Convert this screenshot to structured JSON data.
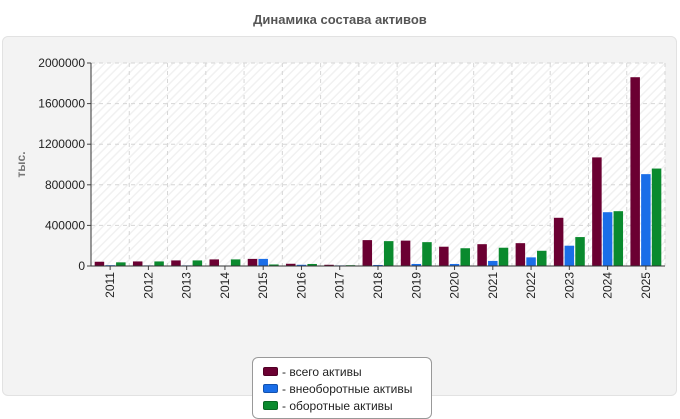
{
  "title": "Динамика состава активов",
  "chart_data": {
    "type": "bar",
    "title": "Динамика состава активов",
    "ylabel": "тыс.",
    "xlabel": "",
    "ylim": [
      0,
      2000000
    ],
    "yticks": [
      0,
      400000,
      800000,
      1200000,
      1600000,
      2000000
    ],
    "grid": true,
    "legend_position": "bottom-center",
    "categories": [
      "2011",
      "2012",
      "2013",
      "2014",
      "2015",
      "2016",
      "2017",
      "2018",
      "2019",
      "2020",
      "2021",
      "2022",
      "2023",
      "2024",
      "2025"
    ],
    "series": [
      {
        "name": "всего активы",
        "color": "#6b0032",
        "values": [
          42000,
          45000,
          55000,
          65000,
          70000,
          22000,
          12000,
          255000,
          250000,
          190000,
          215000,
          225000,
          475000,
          1070000,
          1860000
        ]
      },
      {
        "name": "внеоботные активы",
        "color": "#1a6ee8",
        "values": [
          8000,
          6000,
          6000,
          5000,
          70000,
          12000,
          6000,
          10000,
          20000,
          20000,
          50000,
          85000,
          200000,
          530000,
          905000
        ]
      },
      {
        "name": "оборотные активы",
        "color": "#0a8a2e",
        "values": [
          36000,
          45000,
          55000,
          65000,
          15000,
          20000,
          8000,
          245000,
          235000,
          175000,
          180000,
          150000,
          285000,
          540000,
          960000
        ]
      }
    ]
  },
  "legend": {
    "items": [
      {
        "label": "- всего активы",
        "color": "#6b0032"
      },
      {
        "label": "- внеоборотные активы",
        "color": "#1a6ee8"
      },
      {
        "label": "- оборотные активы",
        "color": "#0a8a2e"
      }
    ]
  }
}
